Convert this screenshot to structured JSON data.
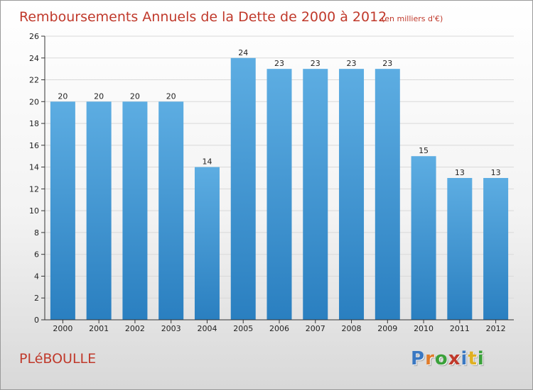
{
  "header": {
    "title": "Remboursements Annuels de la Dette de 2000 à 2012",
    "unit": "(en milliers d'€)"
  },
  "commune": "PLéBOULLE",
  "logo": {
    "text": "Proxiti",
    "letters": [
      {
        "char": "P",
        "color": "#3a78c2"
      },
      {
        "char": "r",
        "color": "#e07b2a"
      },
      {
        "char": "o",
        "color": "#3aa13a"
      },
      {
        "char": "x",
        "color": "#c0392b"
      },
      {
        "char": "i",
        "color": "#3a78c2"
      },
      {
        "char": "t",
        "color": "#e0b020"
      },
      {
        "char": "i",
        "color": "#3aa13a"
      }
    ]
  },
  "chart_data": {
    "type": "bar",
    "title": "Remboursements Annuels de la Dette de 2000 à 2012",
    "subtitle": "(en milliers d'€)",
    "xlabel": "",
    "ylabel": "",
    "categories": [
      "2000",
      "2001",
      "2002",
      "2003",
      "2004",
      "2005",
      "2006",
      "2007",
      "2008",
      "2009",
      "2010",
      "2011",
      "2012"
    ],
    "values": [
      20,
      20,
      20,
      20,
      14,
      24,
      23,
      23,
      23,
      23,
      15,
      13,
      13
    ],
    "ylim": [
      0,
      26
    ],
    "yticks": [
      0,
      2,
      4,
      6,
      8,
      10,
      12,
      14,
      16,
      18,
      20,
      22,
      24,
      26
    ],
    "grid": true,
    "bar_color_top": "#5dade2",
    "bar_color_bottom": "#2a7fc0"
  }
}
